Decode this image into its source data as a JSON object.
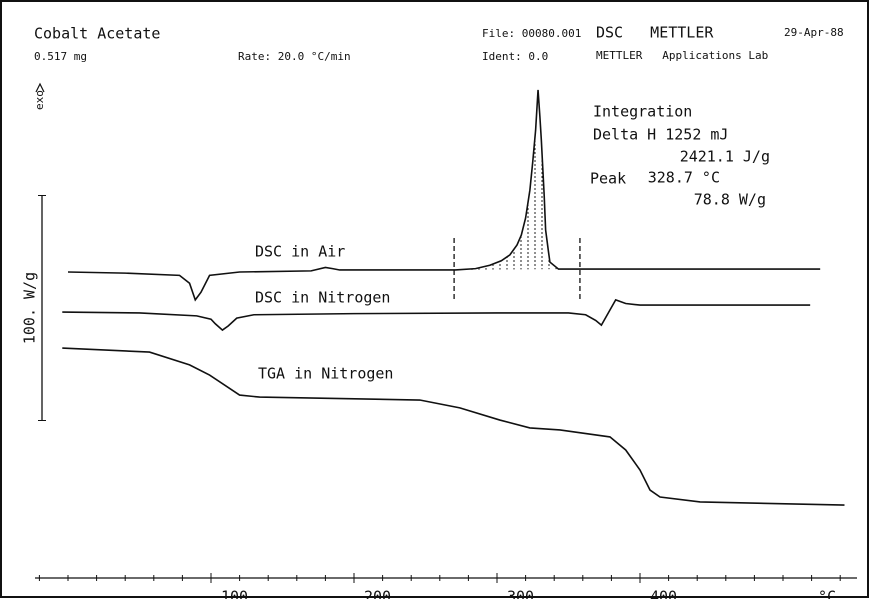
{
  "chart_data": {
    "type": "line",
    "title": "Cobalt Acetate",
    "sample_mass": "0.517 mg",
    "rate": "Rate: 20.0 °C/min",
    "file": "File: 00080.001",
    "ident": "Ident: 0.0",
    "instrument": "DSC   METTLER",
    "date": "29-Apr-88",
    "lab": "METTLER   Applications Lab",
    "exo_label": "exo",
    "xlabel": "°C",
    "xlim": [
      -20,
      550
    ],
    "ylim": [
      0,
      220
    ],
    "xticks": [
      {
        "value": 100,
        "label": "100."
      },
      {
        "value": 200,
        "label": "200."
      },
      {
        "value": 300,
        "label": "300."
      },
      {
        "value": 400,
        "label": "400."
      }
    ],
    "minor_xticks": [
      -20,
      0,
      20,
      40,
      60,
      80,
      120,
      140,
      160,
      180,
      220,
      240,
      260,
      280,
      320,
      340,
      360,
      380,
      420,
      440,
      460,
      480,
      500,
      520,
      540
    ],
    "scale_bar": {
      "label": "100. W/g",
      "from": 70,
      "to": 170
    },
    "integration_limits": [
      270,
      358
    ],
    "annotation": {
      "heading": "Integration",
      "delta_h": "Delta H 1252 mJ",
      "specific": "2421.1 J/g",
      "peak_label": "Peak",
      "peak_temp": "328.7 °C",
      "peak_height": "78.8 W/g"
    },
    "color": "#111111",
    "series": [
      {
        "name": "DSC in Air",
        "color": "#111111",
        "x": [
          0,
          40,
          78,
          85,
          89,
          93,
          99,
          120,
          170,
          180,
          185,
          190,
          230,
          271,
          285,
          295,
          303,
          309,
          314,
          317,
          320,
          323,
          325,
          327,
          328.7,
          330,
          331,
          333,
          334,
          336,
          337,
          343,
          380,
          450,
          526
        ],
        "values": [
          136,
          135.5,
          134.5,
          131,
          123.6,
          127,
          134.5,
          136,
          136.5,
          138,
          137.5,
          136.9,
          136.9,
          136.9,
          137.5,
          139,
          141,
          143.6,
          148,
          152.4,
          160,
          172.4,
          185,
          199,
          216.9,
          205,
          194.7,
          170,
          154.7,
          145,
          140.4,
          137.3,
          137.3,
          137.3,
          137.3
        ]
      },
      {
        "name": "DSC in Nitrogen",
        "color": "#111111",
        "x": [
          -4,
          50,
          90,
          100,
          103,
          108,
          112,
          118,
          130,
          200,
          300,
          350,
          362,
          369,
          373,
          378,
          383,
          390,
          400,
          450,
          519
        ],
        "values": [
          118.2,
          117.8,
          116.5,
          115,
          113,
          110.2,
          112,
          115.5,
          117,
          117.5,
          117.8,
          117.8,
          117,
          114.5,
          112.4,
          118,
          123.6,
          122,
          121.3,
          121.3,
          121.3
        ]
      },
      {
        "name": "TGA in Nitrogen",
        "color": "#111111",
        "x": [
          -4,
          57,
          85,
          99,
          120,
          134,
          246,
          274,
          302,
          323,
          344,
          379,
          390,
          400,
          407,
          414,
          442,
          543
        ],
        "values": [
          102.2,
          100.4,
          94.7,
          90.2,
          81.3,
          80.4,
          79.1,
          75.6,
          70.2,
          66.7,
          65.8,
          62.7,
          56.9,
          48,
          39.1,
          36,
          33.8,
          32.4
        ]
      }
    ]
  }
}
